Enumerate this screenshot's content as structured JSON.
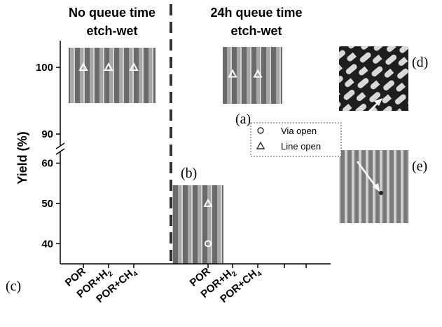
{
  "panel_labels": {
    "a": "(a)",
    "b": "(b)",
    "c": "(c)",
    "d": "(d)",
    "e": "(e)"
  },
  "header": {
    "left_line1": "No queue time",
    "left_line2": "etch-wet",
    "right_line1": "24h queue time",
    "right_line2": "etch-wet"
  },
  "legend": {
    "via": "Via open",
    "line": "Line open",
    "placement": "right-middle"
  },
  "colors": {
    "axis": "#000000",
    "divider": "#333333",
    "sem_bg": "#6d6d6d",
    "sem_line": "#a9a9a9",
    "marker": "#ffffff"
  },
  "chart_data": {
    "type": "scatter",
    "title": "",
    "xlabel": "",
    "ylabel": "Yield (%)",
    "broken_y_axis": true,
    "ylim_upper": [
      88,
      104
    ],
    "ylim_lower": [
      35,
      62
    ],
    "yticks_upper": [
      90,
      100
    ],
    "yticks_lower": [
      40,
      50,
      60
    ],
    "groups": [
      {
        "header": "No queue time etch-wet",
        "categories": [
          "POR",
          "POR+H2",
          "POR+CH4"
        ]
      },
      {
        "header": "24h queue time etch-wet",
        "categories": [
          "POR",
          "POR+H2",
          "POR+CH4"
        ]
      }
    ],
    "category_labels": [
      {
        "base": "POR",
        "sub": ""
      },
      {
        "base": "POR+H",
        "sub": "2"
      },
      {
        "base": "POR+CH",
        "sub": "4"
      },
      {
        "base": "POR",
        "sub": ""
      },
      {
        "base": "POR+H",
        "sub": "2"
      },
      {
        "base": "POR+CH",
        "sub": "4"
      }
    ],
    "series": [
      {
        "name": "Line open",
        "marker": "triangle",
        "points": [
          {
            "x": 0,
            "y": 100
          },
          {
            "x": 1,
            "y": 100
          },
          {
            "x": 2,
            "y": 100
          },
          {
            "x": 3,
            "y": 50
          },
          {
            "x": 4,
            "y": 99
          },
          {
            "x": 5,
            "y": 99
          }
        ]
      },
      {
        "name": "Via open",
        "marker": "circle",
        "points": [
          {
            "x": 3,
            "y": 40
          }
        ]
      }
    ]
  }
}
